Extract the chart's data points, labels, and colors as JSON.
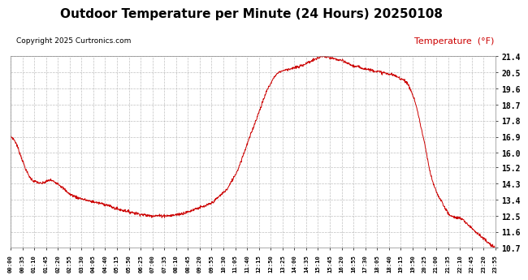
{
  "title": "Outdoor Temperature per Minute (24 Hours) 20250108",
  "copyright": "Copyright 2025 Curtronics.com",
  "legend_label": "Temperature  (°F)",
  "line_color": "#cc0000",
  "legend_color": "#cc0000",
  "background_color": "#ffffff",
  "grid_color": "#b0b0b0",
  "title_fontsize": 11,
  "copyright_fontsize": 7,
  "legend_fontsize": 8,
  "yticks": [
    10.7,
    11.6,
    12.5,
    13.4,
    14.3,
    15.2,
    16.0,
    16.9,
    17.8,
    18.7,
    19.6,
    20.5,
    21.4
  ],
  "xtick_labels": [
    "00:00",
    "00:35",
    "01:10",
    "01:45",
    "02:20",
    "02:55",
    "03:30",
    "04:05",
    "04:40",
    "05:15",
    "05:50",
    "06:25",
    "07:00",
    "07:35",
    "08:10",
    "08:45",
    "09:20",
    "09:55",
    "10:30",
    "11:05",
    "11:40",
    "12:15",
    "12:50",
    "13:25",
    "14:00",
    "14:35",
    "15:10",
    "15:45",
    "16:20",
    "16:55",
    "17:30",
    "18:05",
    "18:40",
    "19:15",
    "19:50",
    "20:25",
    "21:00",
    "21:35",
    "22:10",
    "22:45",
    "23:20",
    "23:55"
  ],
  "ylim_min": 10.7,
  "ylim_max": 21.4,
  "temp_data": [
    16.9,
    16.85,
    16.7,
    16.5,
    16.2,
    15.9,
    15.6,
    15.3,
    15.0,
    14.8,
    14.6,
    14.5,
    14.4,
    14.4,
    14.35,
    14.3,
    14.3,
    14.35,
    14.4,
    14.45,
    14.5,
    14.45,
    14.4,
    14.35,
    14.3,
    14.2,
    14.1,
    14.0,
    13.9,
    13.8,
    13.7,
    13.65,
    13.6,
    13.55,
    13.5,
    13.48,
    13.45,
    13.4,
    13.38,
    13.35,
    13.3,
    13.3,
    13.28,
    13.25,
    13.22,
    13.2,
    13.18,
    13.15,
    13.12,
    13.1,
    13.05,
    13.0,
    12.95,
    12.9,
    12.88,
    12.85,
    12.82,
    12.8,
    12.78,
    12.75,
    12.72,
    12.7,
    12.68,
    12.65,
    12.63,
    12.6,
    12.58,
    12.56,
    12.54,
    12.52,
    12.5,
    12.5,
    12.5,
    12.5,
    12.5,
    12.5,
    12.5,
    12.5,
    12.5,
    12.5,
    12.5,
    12.5,
    12.52,
    12.54,
    12.56,
    12.58,
    12.6,
    12.62,
    12.65,
    12.68,
    12.7,
    12.75,
    12.8,
    12.85,
    12.9,
    12.92,
    12.95,
    12.98,
    13.0,
    13.05,
    13.1,
    13.15,
    13.2,
    13.3,
    13.4,
    13.5,
    13.6,
    13.7,
    13.8,
    13.9,
    14.0,
    14.2,
    14.4,
    14.6,
    14.8,
    15.0,
    15.3,
    15.6,
    15.9,
    16.2,
    16.5,
    16.8,
    17.1,
    17.4,
    17.7,
    18.0,
    18.3,
    18.6,
    18.9,
    19.2,
    19.5,
    19.7,
    19.9,
    20.1,
    20.3,
    20.4,
    20.5,
    20.55,
    20.6,
    20.62,
    20.65,
    20.68,
    20.7,
    20.72,
    20.75,
    20.78,
    20.8,
    20.85,
    20.9,
    20.95,
    21.0,
    21.05,
    21.1,
    21.15,
    21.2,
    21.25,
    21.3,
    21.35,
    21.4,
    21.38,
    21.35,
    21.32,
    21.3,
    21.28,
    21.25,
    21.22,
    21.2,
    21.18,
    21.15,
    21.1,
    21.05,
    21.0,
    20.95,
    20.9,
    20.85,
    20.82,
    20.8,
    20.78,
    20.75,
    20.72,
    20.7,
    20.68,
    20.65,
    20.62,
    20.6,
    20.58,
    20.55,
    20.52,
    20.5,
    20.48,
    20.45,
    20.42,
    20.4,
    20.38,
    20.35,
    20.3,
    20.25,
    20.2,
    20.15,
    20.1,
    20.05,
    19.9,
    19.7,
    19.5,
    19.2,
    18.9,
    18.5,
    18.0,
    17.5,
    17.0,
    16.5,
    15.9,
    15.3,
    14.8,
    14.4,
    14.1,
    13.8,
    13.6,
    13.4,
    13.2,
    13.0,
    12.8,
    12.6,
    12.5,
    12.45,
    12.42,
    12.4,
    12.38,
    12.35,
    12.3,
    12.2,
    12.1,
    12.0,
    11.9,
    11.8,
    11.7,
    11.6,
    11.5,
    11.4,
    11.3,
    11.2,
    11.1,
    11.0,
    10.9,
    10.8,
    10.75,
    10.7
  ]
}
